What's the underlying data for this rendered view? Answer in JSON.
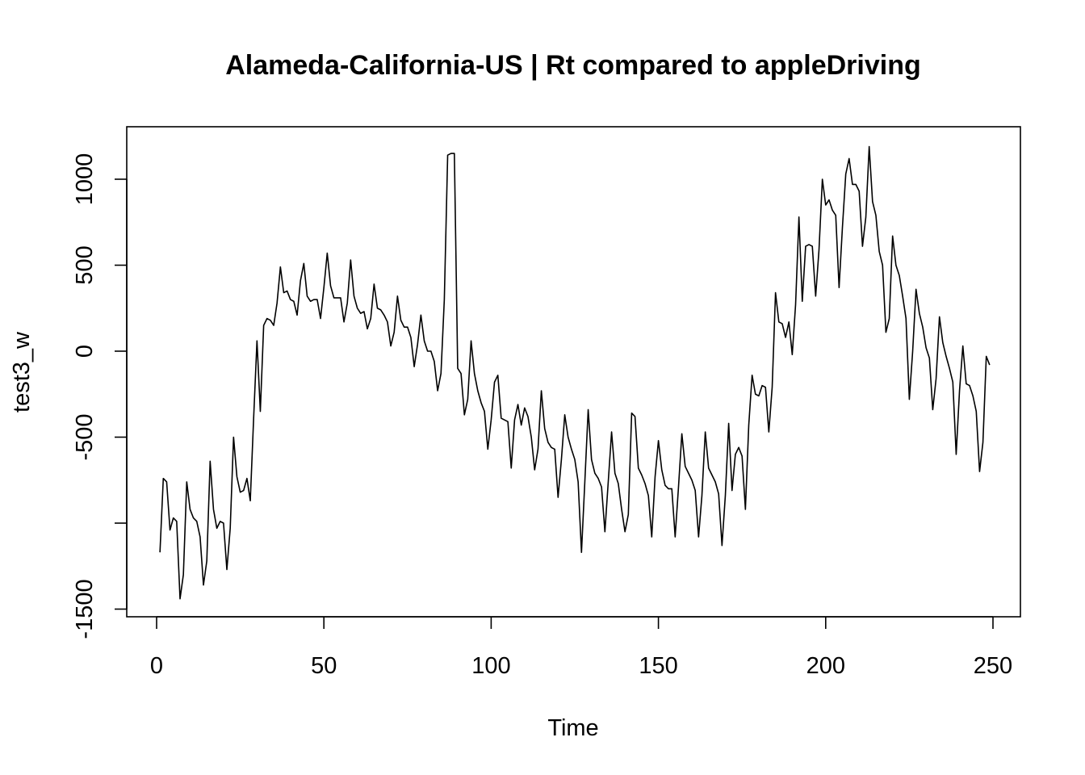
{
  "chart_data": {
    "type": "line",
    "title": "Alameda-California-US | Rt compared to appleDriving",
    "xlabel": "Time",
    "ylabel": "test3_w",
    "xlim": [
      1,
      248
    ],
    "ylim": [
      -1500,
      1200
    ],
    "x_ticks": [
      0,
      50,
      100,
      150,
      200,
      250
    ],
    "y_ticks": [
      -1500,
      -1000,
      -500,
      0,
      500,
      1000
    ],
    "x_tick_labels": [
      "0",
      "50",
      "100",
      "150",
      "200",
      "250"
    ],
    "y_tick_labels": [
      "-1500",
      "",
      "-500",
      "0",
      "500",
      "1000"
    ],
    "series": [
      {
        "color": "#000000",
        "x_start": 1,
        "values": [
          -1170,
          -740,
          -760,
          -1040,
          -970,
          -990,
          -1440,
          -1300,
          -760,
          -920,
          -970,
          -990,
          -1080,
          -1360,
          -1220,
          -640,
          -920,
          -1030,
          -990,
          -1000,
          -1270,
          -1030,
          -500,
          -730,
          -820,
          -810,
          -740,
          -870,
          -390,
          60,
          -350,
          150,
          190,
          180,
          150,
          280,
          490,
          340,
          350,
          300,
          290,
          210,
          410,
          510,
          320,
          290,
          300,
          300,
          190,
          370,
          570,
          380,
          310,
          310,
          310,
          170,
          280,
          530,
          320,
          250,
          220,
          230,
          130,
          190,
          390,
          250,
          240,
          210,
          170,
          30,
          110,
          320,
          180,
          140,
          140,
          80,
          -90,
          40,
          210,
          60,
          0,
          0,
          -60,
          -230,
          -130,
          300,
          1140,
          1150,
          1150,
          -100,
          -130,
          -370,
          -280,
          60,
          -130,
          -230,
          -300,
          -350,
          -570,
          -400,
          -180,
          -140,
          -390,
          -400,
          -410,
          -680,
          -400,
          -310,
          -430,
          -330,
          -380,
          -500,
          -690,
          -570,
          -230,
          -450,
          -530,
          -560,
          -570,
          -850,
          -630,
          -370,
          -500,
          -570,
          -630,
          -760,
          -1170,
          -760,
          -340,
          -630,
          -710,
          -740,
          -790,
          -1050,
          -760,
          -470,
          -710,
          -770,
          -920,
          -1050,
          -950,
          -360,
          -380,
          -680,
          -720,
          -770,
          -840,
          -1080,
          -730,
          -520,
          -690,
          -780,
          -800,
          -800,
          -1080,
          -790,
          -480,
          -670,
          -710,
          -750,
          -810,
          -1080,
          -840,
          -470,
          -680,
          -720,
          -760,
          -830,
          -1130,
          -840,
          -420,
          -810,
          -600,
          -560,
          -610,
          -920,
          -430,
          -140,
          -250,
          -260,
          -200,
          -210,
          -470,
          -210,
          340,
          170,
          160,
          80,
          170,
          -20,
          270,
          780,
          290,
          610,
          620,
          610,
          320,
          590,
          1000,
          850,
          880,
          820,
          790,
          370,
          720,
          1030,
          1120,
          970,
          970,
          930,
          610,
          780,
          1190,
          870,
          790,
          580,
          500,
          110,
          190,
          670,
          500,
          440,
          320,
          190,
          -280,
          0,
          360,
          220,
          140,
          20,
          -40,
          -340,
          -160,
          200,
          50,
          -30,
          -100,
          -180,
          -600,
          -230,
          30,
          -190,
          -200,
          -260,
          -350,
          -700,
          -530,
          -30,
          -80
        ]
      }
    ],
    "grid": false,
    "legend": "none"
  }
}
